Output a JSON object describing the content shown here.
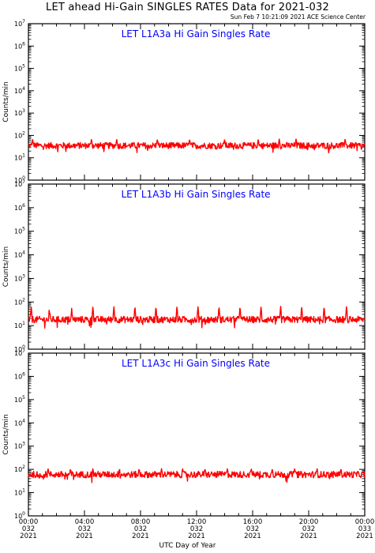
{
  "title": "LET ahead Hi-Gain SINGLES RATES Data for 2021-032",
  "timestamp": "Sun Feb  7 10:21:09 2021 ACE Science Center",
  "xlabel": "UTC Day of Year",
  "colors": {
    "series": "#ff0000",
    "panel_title": "#0000ff",
    "axes": "#000000"
  },
  "chart_data": [
    {
      "type": "line",
      "title": "LET L1A3a Hi Gain Singles Rate",
      "ylabel": "Counts/min",
      "yscale": "log",
      "ylim": [
        1,
        10000000
      ],
      "xlim": [
        0,
        24
      ],
      "baseline": 35,
      "spikes": [
        0.3,
        4.5,
        6.3,
        9.2,
        11.5,
        14.0,
        16.4,
        17.9,
        19.1,
        22.6
      ],
      "spike_value": 70
    },
    {
      "type": "line",
      "title": "LET L1A3b Hi Gain Singles Rate",
      "ylabel": "Counts/min",
      "yscale": "log",
      "ylim": [
        1,
        10000000
      ],
      "xlim": [
        0,
        24
      ],
      "baseline": 18,
      "spikes": [
        0.2,
        1.5,
        3.1,
        4.6,
        6.1,
        7.6,
        9.1,
        10.6,
        12.1,
        13.6,
        15.1,
        16.6,
        18.0,
        19.5,
        21.1,
        22.7
      ],
      "spike_value": 65
    },
    {
      "type": "line",
      "title": "LET L1A3c Hi Gain Singles Rate",
      "ylabel": "Counts/min",
      "yscale": "log",
      "ylim": [
        1,
        10000000
      ],
      "xlim": [
        0,
        24
      ],
      "baseline": 60,
      "spikes": [
        1.4,
        3.0,
        4.6,
        6.5,
        7.9,
        9.5,
        11.0,
        12.6,
        14.2,
        15.9,
        17.4,
        19.0,
        20.6,
        22.3
      ],
      "spike_value": 110
    }
  ],
  "x_ticks": [
    {
      "x": 0,
      "time": "00:00",
      "doy": "032",
      "year": "2021"
    },
    {
      "x": 4,
      "time": "04:00",
      "doy": "032",
      "year": "2021"
    },
    {
      "x": 8,
      "time": "08:00",
      "doy": "032",
      "year": "2021"
    },
    {
      "x": 12,
      "time": "12:00",
      "doy": "032",
      "year": "2021"
    },
    {
      "x": 16,
      "time": "16:00",
      "doy": "032",
      "year": "2021"
    },
    {
      "x": 20,
      "time": "20:00",
      "doy": "032",
      "year": "2021"
    },
    {
      "x": 24,
      "time": "00:00",
      "doy": "033",
      "year": "2021"
    }
  ]
}
